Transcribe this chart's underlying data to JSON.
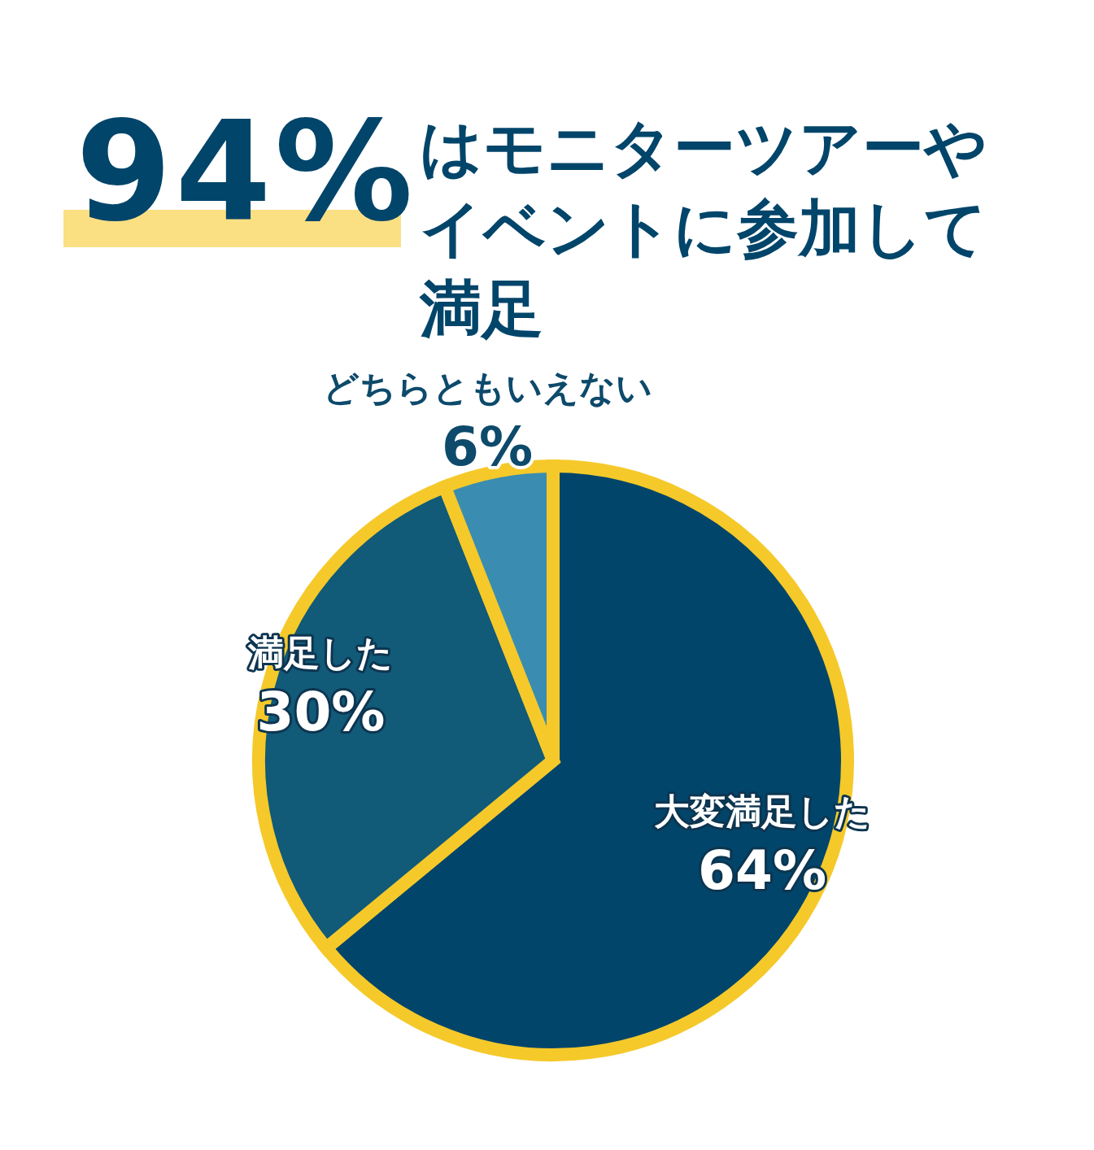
{
  "chart_data": {
    "type": "pie",
    "title": "94%",
    "subtitle": "はモニターツアーやイベントに参加して満足",
    "categories": [
      "大変満足した",
      "満足した",
      "どちらともいえない"
    ],
    "values": [
      64,
      30,
      6
    ],
    "colors": [
      "#02456a",
      "#115a78",
      "#3a8db0"
    ],
    "value_labels": [
      "64%",
      "30%",
      "6%"
    ]
  }
}
